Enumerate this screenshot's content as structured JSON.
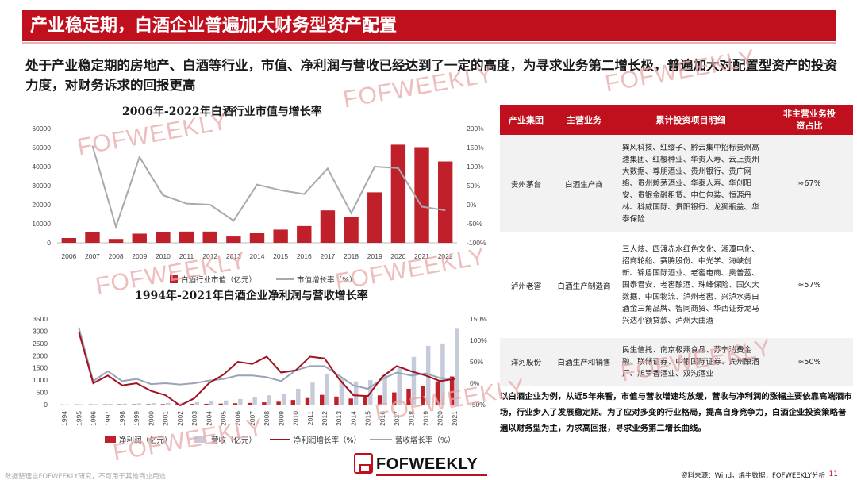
{
  "header": {
    "title": "产业稳定期，白酒企业普遍加大财务型资产配置"
  },
  "intro": "处于产业稳定期的房地产、白酒等行业，市值、净利润与营收已经达到了一定的高度，为寻求业务第二增长极，普遍加大对配置型资产的投资力度，对财务诉求的回报更高",
  "colors": {
    "accent": "#c00f1d",
    "bar": "#c0202a",
    "line_gray": "#a9a9a9",
    "bar_gray": "#c5cbd8",
    "line_dark_red": "#a01020",
    "line_blue_gray": "#9aa4b8"
  },
  "chart_data": [
    {
      "type": "bar",
      "title": "2006年-2022年白酒行业市值与增长率",
      "categories": [
        "2006",
        "2007",
        "2008",
        "2009",
        "2010",
        "2011",
        "2012",
        "2013",
        "2014",
        "2015",
        "2016",
        "2017",
        "2018",
        "2019",
        "2020",
        "2021",
        "2022"
      ],
      "series": [
        {
          "name": "白酒行业市值（亿元）",
          "type": "bar",
          "axis": "left",
          "values": [
            2500,
            5500,
            2000,
            4800,
            5800,
            5900,
            5900,
            3300,
            5000,
            6900,
            8800,
            17000,
            13500,
            26500,
            51500,
            50200,
            42700
          ]
        },
        {
          "name": "市值增长率（%）",
          "type": "line",
          "axis": "right",
          "values": [
            null,
            155,
            -58,
            125,
            25,
            3,
            0,
            -42,
            53,
            38,
            28,
            95,
            -22,
            100,
            96,
            -5,
            -15
          ]
        }
      ],
      "ylim": [
        0,
        60000
      ],
      "y2lim": [
        -100,
        200
      ],
      "yticks": [
        "0",
        "10000",
        "20000",
        "30000",
        "40000",
        "50000",
        "60000"
      ],
      "y2ticks": [
        "-100%",
        "-50%",
        "0%",
        "50%",
        "100%",
        "150%",
        "200%"
      ],
      "legend": "bottom"
    },
    {
      "type": "bar",
      "title": "1994年-2021年白酒企业净利润与营收增长率",
      "categories": [
        "1994",
        "1995",
        "1996",
        "1997",
        "1998",
        "1999",
        "2000",
        "2001",
        "2002",
        "2003",
        "2004",
        "2005",
        "2006",
        "2007",
        "2008",
        "2009",
        "2010",
        "2011",
        "2012",
        "2013",
        "2014",
        "2015",
        "2016",
        "2017",
        "2018",
        "2019",
        "2020",
        "2021"
      ],
      "series": [
        {
          "name": "净利润（亿元）",
          "type": "bar",
          "axis": "left",
          "values": [
            5,
            8,
            10,
            12,
            14,
            15,
            17,
            20,
            22,
            28,
            34,
            42,
            55,
            70,
            95,
            120,
            190,
            270,
            400,
            330,
            250,
            310,
            380,
            500,
            650,
            750,
            950,
            1150
          ]
        },
        {
          "name": "营收（亿元）",
          "type": "bar",
          "axis": "left",
          "values": [
            10,
            15,
            20,
            30,
            40,
            50,
            60,
            70,
            80,
            100,
            130,
            170,
            230,
            300,
            380,
            450,
            650,
            900,
            1250,
            1100,
            950,
            1000,
            1200,
            1500,
            1950,
            2400,
            2500,
            3100
          ]
        },
        {
          "name": "净利润增长率（%）",
          "type": "line",
          "axis": "right",
          "values": [
            null,
            120,
            0,
            18,
            -5,
            0,
            -18,
            -28,
            -52,
            -35,
            0,
            20,
            50,
            45,
            62,
            25,
            30,
            62,
            58,
            10,
            -28,
            -30,
            15,
            40,
            28,
            18,
            5,
            10
          ]
        },
        {
          "name": "营收增长率（%）",
          "type": "line",
          "axis": "right",
          "values": [
            null,
            130,
            5,
            28,
            5,
            10,
            -2,
            0,
            -3,
            0,
            6,
            10,
            18,
            18,
            14,
            5,
            30,
            40,
            40,
            18,
            -5,
            -13,
            10,
            25,
            18,
            23,
            12,
            10
          ]
        }
      ],
      "ylim": [
        0,
        3500
      ],
      "y2lim": [
        -50,
        150
      ],
      "yticks": [
        "0",
        "500",
        "1000",
        "1500",
        "2000",
        "2500",
        "3000",
        "3500"
      ],
      "y2ticks": [
        "-50%",
        "0%",
        "50%",
        "100%",
        "150%"
      ],
      "legend": "bottom"
    }
  ],
  "table": {
    "headers": [
      "产业集团",
      "主营业务",
      "累计投资项目明细",
      "非主营业务投资占比"
    ],
    "rows": [
      {
        "group": "贵州茅台",
        "business": "白酒生产商",
        "details": "巽风科技、红缨子、黔云集中招标贵州高速集团、红樱种业、华贵人寿、云上贵州大数据、尊朋酒业、贵州银行、贵广网络、贵州赖茅酒业、华泰人寿、华创阳安、贵银金融租赁、申仁包装、恒源丹林、科威国际、贵阳银行、龙狮瓶盖、华泰保险",
        "ratio": "≈67%"
      },
      {
        "group": "泸州老窖",
        "business": "白酒生产制造商",
        "details": "三人炫、四渡赤水红色文化、湘潭电化、招商轮船、赛腾股份、中光学、海峡创新、锦盾国际酒业、老窖电商、奥普蓝、国泰君安、老窖酿酒、珠峰保险、国久大数据、中国物流、泸州老窖、兴泸水务白酒金三角品牌、智同商贸、华西证券龙马兴达小额贷款、泸州大曲酒",
        "ratio": "≈57%"
      },
      {
        "group": "洋河股份",
        "business": "白酒生产和销售",
        "details": "民生信托、南京极燕食品、苏宁消费金融、联储证券、中银国际证券、宾州酿酒厂、旭罗香酒业、双沟酒业",
        "ratio": "≈50%"
      }
    ]
  },
  "summary": "以白酒企业为例，从近5年来看，市值与营收增速均放缓，营收与净利润的涨幅主要依靠高端酒市场，行业步入了发展稳定期。为了应对多变的行业格局，提高自身竞争力，白酒企业投资策略普遍以财务型为主，力求高回报，寻求业务第二增长曲线。",
  "watermark": "FOFWEEKLY",
  "footer": {
    "disclaimer": "数据整理自FOFWEEKLY研究，不可用于其他商业用途",
    "source": "资料来源：Wind，烯牛数据，FOFWEEKLY分析",
    "page": "11",
    "logo": "FOFWEEKLY"
  }
}
